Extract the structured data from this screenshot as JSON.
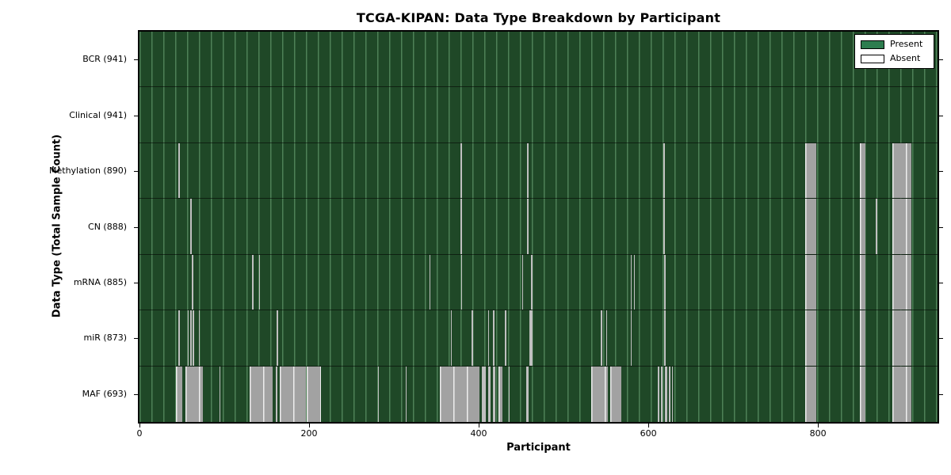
{
  "title": "TCGA-KIPAN: Data Type Breakdown by Participant",
  "x_axis_label": "Participant",
  "y_axis_label": "Data Type (Total Sample Count)",
  "legend": {
    "present_label": "Present",
    "absent_label": "Absent"
  },
  "colors": {
    "present_green": "#2e7d4f",
    "absent_white": "#ffffff",
    "plot_green_base": "#1f4827",
    "plot_green_line": "#7db987",
    "absent_gray": "#a2a2a2",
    "absent_stripe": "#ededed",
    "axis_black": "#000000"
  },
  "chart_data": {
    "type": "heatmap",
    "title": "TCGA-KIPAN: Data Type Breakdown by Participant",
    "xlabel": "Participant",
    "ylabel": "Data Type (Total Sample Count)",
    "x_range": [
      0,
      941
    ],
    "x_ticks": [
      0,
      200,
      400,
      600,
      800
    ],
    "legend_entries": [
      "Present",
      "Absent"
    ],
    "legend_position": "upper right",
    "cell_states": [
      "Present",
      "Absent"
    ],
    "rows": [
      {
        "name": "BCR",
        "label": "BCR (941)",
        "total": 941,
        "absent_runs": []
      },
      {
        "name": "Clinical",
        "label": "Clinical (941)",
        "total": 941,
        "absent_runs": []
      },
      {
        "name": "Methylation",
        "label": "Methylation (890)",
        "total": 890,
        "absent_runs": [
          [
            46,
            48
          ],
          [
            378,
            380
          ],
          [
            457,
            459
          ],
          [
            618,
            620
          ],
          [
            785,
            798
          ],
          [
            849,
            856
          ],
          [
            888,
            910
          ]
        ]
      },
      {
        "name": "CN",
        "label": "CN (888)",
        "total": 888,
        "absent_runs": [
          [
            60,
            62
          ],
          [
            378,
            380
          ],
          [
            457,
            459
          ],
          [
            618,
            620
          ],
          [
            785,
            798
          ],
          [
            849,
            856
          ],
          [
            868,
            870
          ],
          [
            888,
            910
          ]
        ]
      },
      {
        "name": "mRNA",
        "label": "mRNA (885)",
        "total": 885,
        "absent_runs": [
          [
            62,
            63
          ],
          [
            133,
            134
          ],
          [
            141,
            142
          ],
          [
            342,
            343
          ],
          [
            379,
            380
          ],
          [
            451,
            452
          ],
          [
            462,
            463
          ],
          [
            579,
            580
          ],
          [
            583,
            584
          ],
          [
            619,
            620
          ],
          [
            785,
            798
          ],
          [
            849,
            856
          ],
          [
            888,
            910
          ]
        ]
      },
      {
        "name": "miR",
        "label": "miR (873)",
        "total": 873,
        "absent_runs": [
          [
            46,
            47
          ],
          [
            57,
            58
          ],
          [
            60,
            61
          ],
          [
            63,
            64
          ],
          [
            70,
            71
          ],
          [
            162,
            163
          ],
          [
            367,
            368
          ],
          [
            392,
            393
          ],
          [
            411,
            412
          ],
          [
            417,
            418
          ],
          [
            431,
            432
          ],
          [
            460,
            461
          ],
          [
            462,
            463
          ],
          [
            544,
            546
          ],
          [
            550,
            551
          ],
          [
            579,
            580
          ],
          [
            619,
            620
          ],
          [
            785,
            798
          ],
          [
            849,
            856
          ],
          [
            888,
            910
          ]
        ]
      },
      {
        "name": "MAF",
        "label": "MAF (693)",
        "total": 693,
        "absent_runs": [
          [
            43,
            50
          ],
          [
            54,
            75
          ],
          [
            94,
            95
          ],
          [
            130,
            157
          ],
          [
            161,
            162
          ],
          [
            165,
            196
          ],
          [
            197,
            214
          ],
          [
            281,
            282
          ],
          [
            314,
            315
          ],
          [
            354,
            401
          ],
          [
            404,
            408
          ],
          [
            411,
            414
          ],
          [
            417,
            420
          ],
          [
            423,
            428
          ],
          [
            435,
            436
          ],
          [
            456,
            459
          ],
          [
            533,
            552
          ],
          [
            555,
            568
          ],
          [
            611,
            613
          ],
          [
            615,
            617
          ],
          [
            620,
            622
          ],
          [
            624,
            626
          ],
          [
            628,
            629
          ],
          [
            785,
            798
          ],
          [
            849,
            856
          ],
          [
            888,
            910
          ]
        ]
      }
    ]
  }
}
